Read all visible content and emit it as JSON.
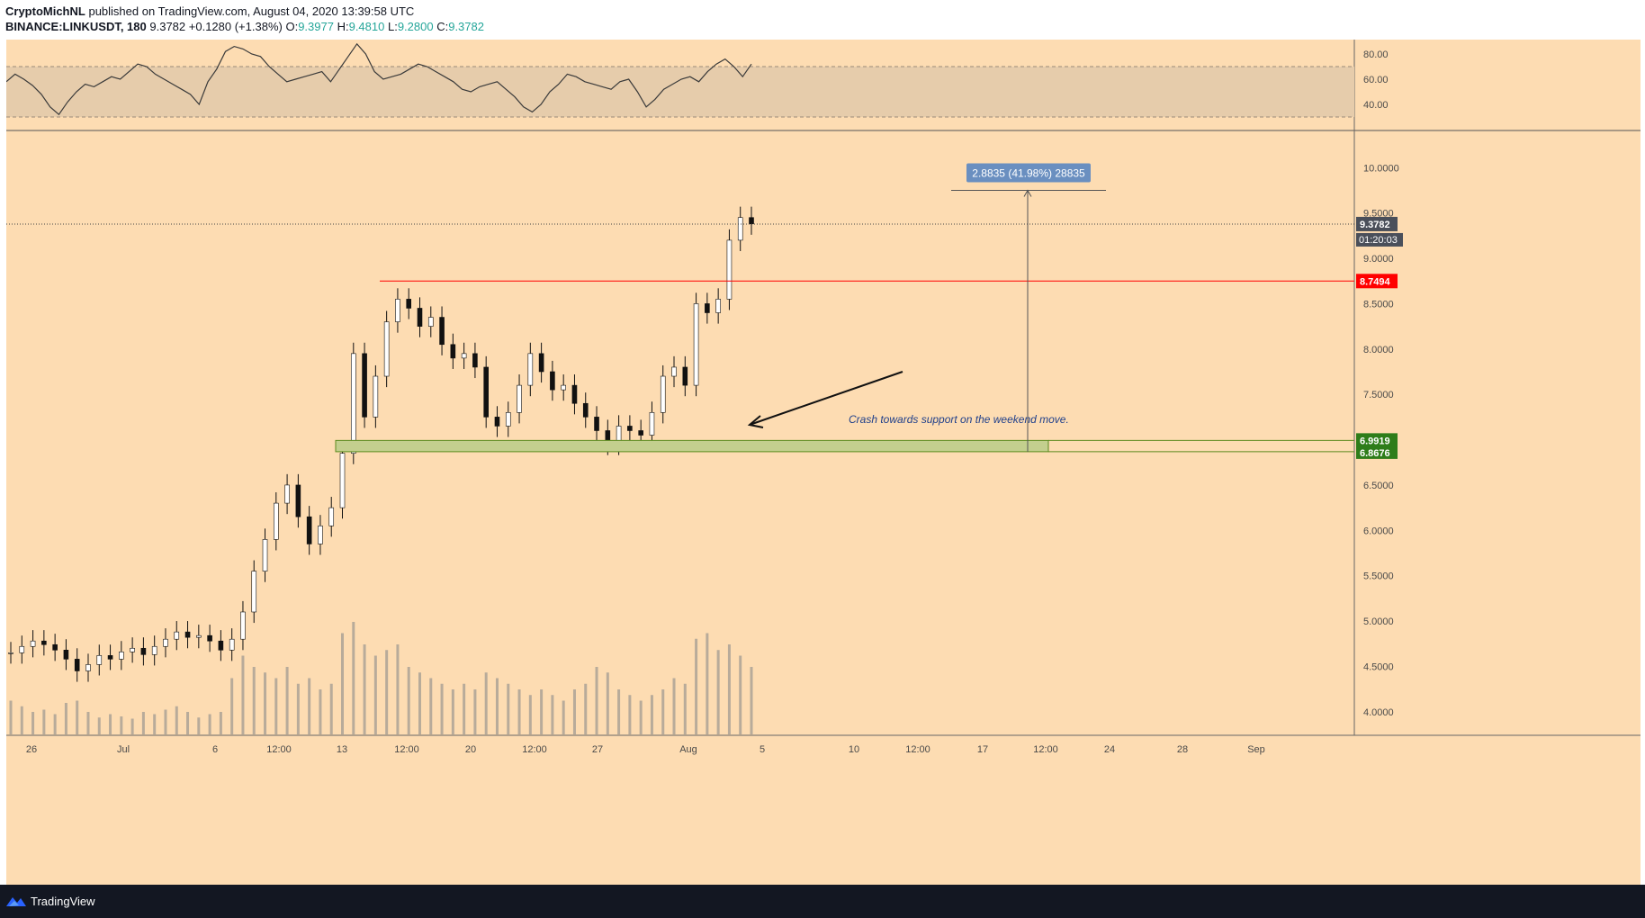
{
  "header": {
    "author": "CryptoMichNL",
    "published_text": "published on TradingView.com, August 04, 2020 13:39:58 UTC",
    "symbol": "BINANCE:LINKUSDT, 180",
    "last": "9.3782",
    "change": "+0.1280 (+1.38%)",
    "o_label": "O:",
    "o_value": "9.3977",
    "h_label": "H:",
    "h_value": "9.4810",
    "l_label": "L:",
    "l_value": "9.2800",
    "c_label": "C:",
    "c_value": "9.3782"
  },
  "footer": {
    "brand": "TradingView"
  },
  "colors": {
    "background": "#fddcb2",
    "rsi_band": "#e6ccab",
    "resistance": "#ff0000",
    "support_zone": "#c3cf8e",
    "support_border": "#5b8a1e",
    "measure_label_bg": "#6a8fc0",
    "annotation_text": "#1f3f8a"
  },
  "chart_data": [
    {
      "type": "line",
      "name": "RSI",
      "y_ticks": [
        "80.00",
        "60.00",
        "40.00"
      ],
      "band": [
        30,
        70
      ],
      "values": [
        58,
        64,
        60,
        55,
        48,
        38,
        32,
        42,
        50,
        56,
        54,
        58,
        62,
        60,
        66,
        72,
        70,
        64,
        60,
        56,
        52,
        48,
        40,
        58,
        68,
        82,
        86,
        84,
        80,
        78,
        70,
        64,
        58,
        60,
        62,
        64,
        66,
        58,
        68,
        78,
        88,
        80,
        66,
        60,
        62,
        64,
        68,
        72,
        70,
        66,
        62,
        58,
        52,
        50,
        54,
        56,
        58,
        52,
        46,
        38,
        34,
        40,
        50,
        56,
        64,
        62,
        58,
        56,
        54,
        52,
        58,
        60,
        50,
        38,
        44,
        52,
        56,
        60,
        62,
        58,
        66,
        72,
        76,
        70,
        62,
        72
      ],
      "ylim": [
        20,
        90
      ]
    },
    {
      "type": "candlestick",
      "name": "LINKUSDT",
      "x_ticks": [
        "26",
        "Jul",
        "6",
        "12:00",
        "13",
        "12:00",
        "20",
        "12:00",
        "27",
        "Aug",
        "5",
        "10",
        "12:00",
        "17",
        "12:00",
        "24",
        "28",
        "Sep"
      ],
      "y_ticks": [
        "10.0000",
        "9.5000",
        "9.0000",
        "8.5000",
        "8.0000",
        "7.5000",
        "7.0000",
        "6.5000",
        "6.0000",
        "5.5000",
        "5.0000",
        "4.5000",
        "4.0000"
      ],
      "ylim": [
        3.75,
        10.4
      ],
      "close": [
        4.65,
        4.72,
        4.78,
        4.74,
        4.68,
        4.58,
        4.45,
        4.52,
        4.62,
        4.58,
        4.66,
        4.7,
        4.63,
        4.72,
        4.8,
        4.88,
        4.82,
        4.84,
        4.78,
        4.68,
        4.8,
        5.1,
        5.55,
        5.9,
        6.3,
        6.5,
        6.15,
        5.85,
        6.05,
        6.25,
        6.85,
        7.95,
        7.25,
        7.7,
        8.3,
        8.55,
        8.45,
        8.25,
        8.35,
        8.05,
        7.9,
        7.95,
        7.8,
        7.25,
        7.15,
        7.3,
        7.6,
        7.95,
        7.75,
        7.55,
        7.6,
        7.4,
        7.25,
        7.1,
        6.95,
        7.15,
        7.1,
        7.05,
        7.3,
        7.7,
        7.8,
        7.6,
        8.5,
        8.4,
        8.55,
        9.2,
        9.45,
        9.38
      ],
      "volume": [
        0.3,
        0.25,
        0.2,
        0.22,
        0.18,
        0.28,
        0.3,
        0.2,
        0.15,
        0.18,
        0.16,
        0.14,
        0.2,
        0.18,
        0.22,
        0.25,
        0.2,
        0.15,
        0.18,
        0.2,
        0.5,
        0.7,
        0.6,
        0.55,
        0.5,
        0.6,
        0.45,
        0.5,
        0.4,
        0.45,
        0.9,
        1.0,
        0.8,
        0.7,
        0.75,
        0.8,
        0.6,
        0.55,
        0.5,
        0.45,
        0.4,
        0.45,
        0.4,
        0.55,
        0.5,
        0.45,
        0.4,
        0.35,
        0.4,
        0.35,
        0.3,
        0.4,
        0.45,
        0.6,
        0.55,
        0.4,
        0.35,
        0.3,
        0.35,
        0.4,
        0.5,
        0.45,
        0.85,
        0.9,
        0.75,
        0.8,
        0.7,
        0.6
      ],
      "annotations": {
        "price_tag": "9.3782",
        "countdown": "01:20:03",
        "resistance_tag": "8.7494",
        "support_top_tag": "6.9919",
        "support_bottom_tag": "6.8676",
        "measure_label": "2.8835 (41.98%) 28835",
        "note": "Crash towards support on the weekend move."
      }
    }
  ]
}
